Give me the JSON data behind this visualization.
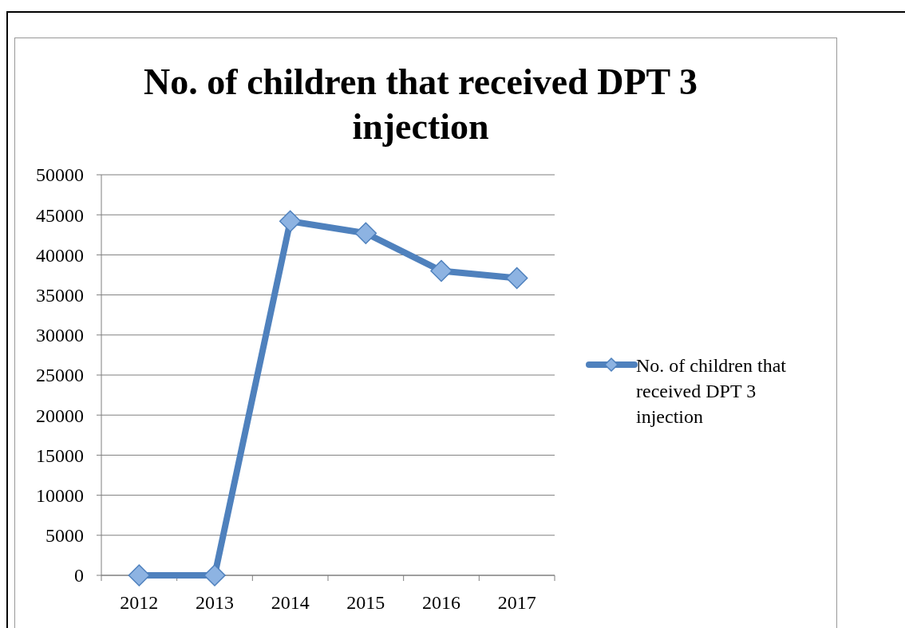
{
  "chart_data": {
    "type": "line",
    "title": "No. of children that received DPT 3 injection",
    "categories": [
      "2012",
      "2013",
      "2014",
      "2015",
      "2016",
      "2017"
    ],
    "series": [
      {
        "name": "No. of children that received DPT 3 injection",
        "color": "#4f81bd",
        "values": [
          0,
          0,
          44200,
          42700,
          38000,
          37100
        ]
      }
    ],
    "ylim": [
      0,
      50000
    ],
    "yticks": [
      0,
      5000,
      10000,
      15000,
      20000,
      25000,
      30000,
      35000,
      40000,
      45000,
      50000
    ],
    "grid": "y",
    "legend": "right",
    "marker": "diamond",
    "line_style": "solid"
  }
}
